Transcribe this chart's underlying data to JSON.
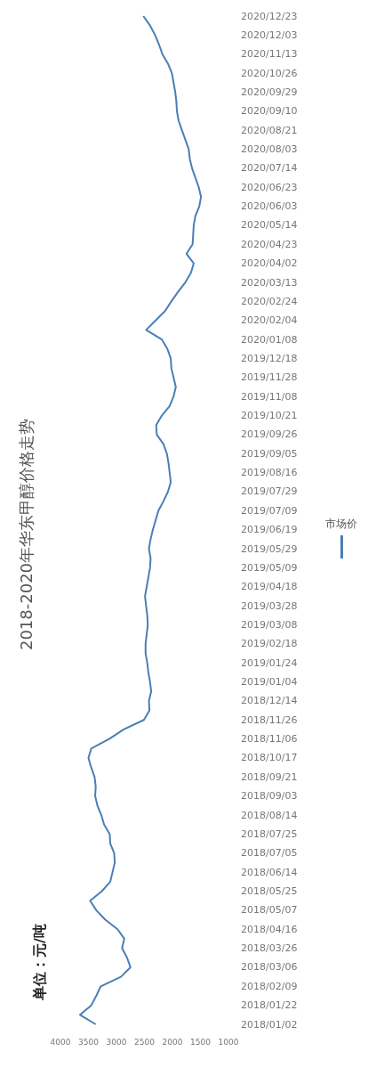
{
  "chart_data": {
    "type": "line",
    "orientation": "horizontal",
    "title": "2018-2020年华东甲醇价格走势",
    "annotations": [
      "单位：元/吨"
    ],
    "legend": "right",
    "xlim": [
      4000,
      1000
    ],
    "xticks": [
      4000,
      3500,
      3000,
      2500,
      2000,
      1500,
      1000
    ],
    "categories": [
      "2020/12/23",
      null,
      "2020/12/03",
      null,
      "2020/11/13",
      null,
      "2020/10/26",
      null,
      "2020/09/29",
      null,
      "2020/09/10",
      null,
      "2020/08/21",
      null,
      "2020/08/03",
      null,
      "2020/07/14",
      null,
      "2020/06/23",
      null,
      "2020/06/03",
      null,
      "2020/05/14",
      null,
      "2020/04/23",
      null,
      "2020/04/02",
      null,
      "2020/03/13",
      null,
      "2020/02/24",
      null,
      "2020/02/04",
      null,
      "2020/01/08",
      null,
      "2019/12/18",
      null,
      "2019/11/28",
      null,
      "2019/11/08",
      null,
      "2019/10/21",
      null,
      "2019/09/26",
      null,
      "2019/09/05",
      null,
      "2019/08/16",
      null,
      "2019/07/29",
      null,
      "2019/07/09",
      null,
      "2019/06/19",
      null,
      "2019/05/29",
      null,
      "2019/05/09",
      null,
      "2019/04/18",
      null,
      "2019/03/28",
      null,
      "2019/03/08",
      null,
      "2019/02/18",
      null,
      "2019/01/24",
      null,
      "2019/01/04",
      null,
      "2018/12/14",
      null,
      "2018/11/26",
      null,
      "2018/11/06",
      null,
      "2018/10/17",
      null,
      "2018/09/21",
      null,
      "2018/09/03",
      null,
      "2018/08/14",
      null,
      "2018/07/25",
      null,
      "2018/07/05",
      null,
      "2018/06/14",
      null,
      "2018/05/25",
      null,
      "2018/05/07",
      null,
      "2018/04/16",
      null,
      "2018/03/26",
      null,
      "2018/03/06",
      null,
      "2018/02/09",
      null,
      "2018/01/22",
      null,
      "2018/01/02"
    ],
    "series": [
      {
        "name": "市场价",
        "color": "#4a7fb5",
        "values": [
          2520,
          2400,
          2310,
          2240,
          2180,
          2080,
          2010,
          1980,
          1950,
          1930,
          1920,
          1890,
          1830,
          1770,
          1710,
          1690,
          1650,
          1590,
          1530,
          1490,
          1520,
          1590,
          1620,
          1630,
          1640,
          1750,
          1620,
          1670,
          1770,
          1900,
          2020,
          2130,
          2300,
          2470,
          2190,
          2090,
          2030,
          2020,
          1980,
          1940,
          1980,
          2050,
          2190,
          2290,
          2280,
          2160,
          2100,
          2070,
          2050,
          2030,
          2080,
          2160,
          2250,
          2300,
          2350,
          2390,
          2420,
          2390,
          2400,
          2430,
          2460,
          2490,
          2470,
          2450,
          2440,
          2460,
          2480,
          2480,
          2450,
          2430,
          2400,
          2380,
          2420,
          2410,
          2510,
          2870,
          3130,
          3450,
          3500,
          3450,
          3390,
          3370,
          3380,
          3340,
          3270,
          3220,
          3120,
          3110,
          3040,
          3030,
          3070,
          3110,
          3260,
          3470,
          3360,
          3200,
          2980,
          2860,
          2900,
          2810,
          2750,
          2920,
          3280,
          3360,
          3450,
          3650,
          3370
        ]
      }
    ]
  }
}
